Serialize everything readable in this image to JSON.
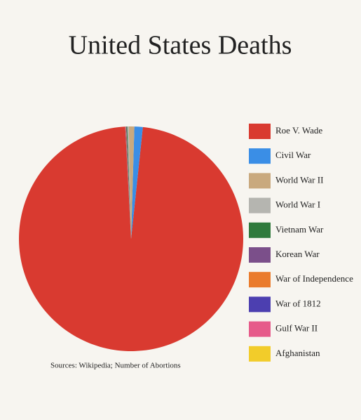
{
  "chart_data": {
    "type": "pie",
    "title": "United States Deaths",
    "categories": [
      "Roe V. Wade",
      "Civil War",
      "World War II",
      "World War I",
      "Vietnam War",
      "Korean War",
      "War of Independence",
      "War of 1812",
      "Gulf War II",
      "Afghanistan"
    ],
    "values": [
      50000000,
      620000,
      405000,
      116000,
      58000,
      36000,
      25000,
      20000,
      4500,
      2300
    ],
    "colors": [
      "#d93a30",
      "#3a8ee6",
      "#c9a97e",
      "#b5b5b0",
      "#2f7a3c",
      "#7b4f8a",
      "#ea7b2c",
      "#4c3fb0",
      "#e65a8a",
      "#f2cc2a"
    ],
    "source": "Sources: Wikipedia; Number of Abortions"
  }
}
